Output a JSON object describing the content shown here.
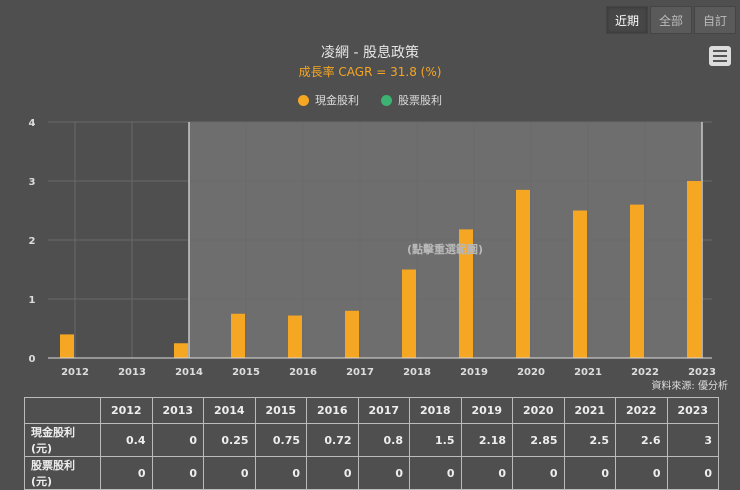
{
  "range_buttons": [
    {
      "label": "近期",
      "active": true
    },
    {
      "label": "全部",
      "active": false
    },
    {
      "label": "自訂",
      "active": false
    }
  ],
  "menu_icon": "hamburger-menu-icon",
  "header": {
    "title": "凌網 - 股息政策",
    "subtitle": "成長率 CAGR = 31.8 (%)"
  },
  "legend": [
    {
      "label": "現金股利",
      "color": "#f5a623"
    },
    {
      "label": "股票股利",
      "color": "#3cb371"
    }
  ],
  "chart_overlay_text": "(點擊重選範圍)",
  "source_text": "資料來源: 優分析",
  "chart_data": {
    "type": "bar",
    "title": "凌網 - 股息政策",
    "subtitle": "成長率 CAGR = 31.8 (%)",
    "categories": [
      "2012",
      "2013",
      "2014",
      "2015",
      "2016",
      "2017",
      "2018",
      "2019",
      "2020",
      "2021",
      "2022",
      "2023"
    ],
    "series": [
      {
        "name": "現金股利",
        "color": "#f5a623",
        "values": [
          0.4,
          0,
          0.25,
          0.75,
          0.72,
          0.8,
          1.5,
          2.18,
          2.85,
          2.5,
          2.6,
          3
        ]
      },
      {
        "name": "股票股利",
        "color": "#3cb371",
        "values": [
          0,
          0,
          0,
          0,
          0,
          0,
          0,
          0,
          0,
          0,
          0,
          0
        ]
      }
    ],
    "xlabel": "",
    "ylabel": "",
    "yticks": [
      0,
      1,
      2,
      3,
      4
    ],
    "ylim": [
      0,
      4
    ],
    "grid": true,
    "legend_position": "top",
    "selected_range": [
      "2014",
      "2023"
    ]
  },
  "table": {
    "headers": [
      "2012",
      "2013",
      "2014",
      "2015",
      "2016",
      "2017",
      "2018",
      "2019",
      "2020",
      "2021",
      "2022",
      "2023"
    ],
    "rows": [
      {
        "label": "現金股利(元)",
        "values": [
          "0.4",
          "0",
          "0.25",
          "0.75",
          "0.72",
          "0.8",
          "1.5",
          "2.18",
          "2.85",
          "2.5",
          "2.6",
          "3"
        ]
      },
      {
        "label": "股票股利(元)",
        "values": [
          "0",
          "0",
          "0",
          "0",
          "0",
          "0",
          "0",
          "0",
          "0",
          "0",
          "0",
          "0"
        ]
      }
    ]
  }
}
